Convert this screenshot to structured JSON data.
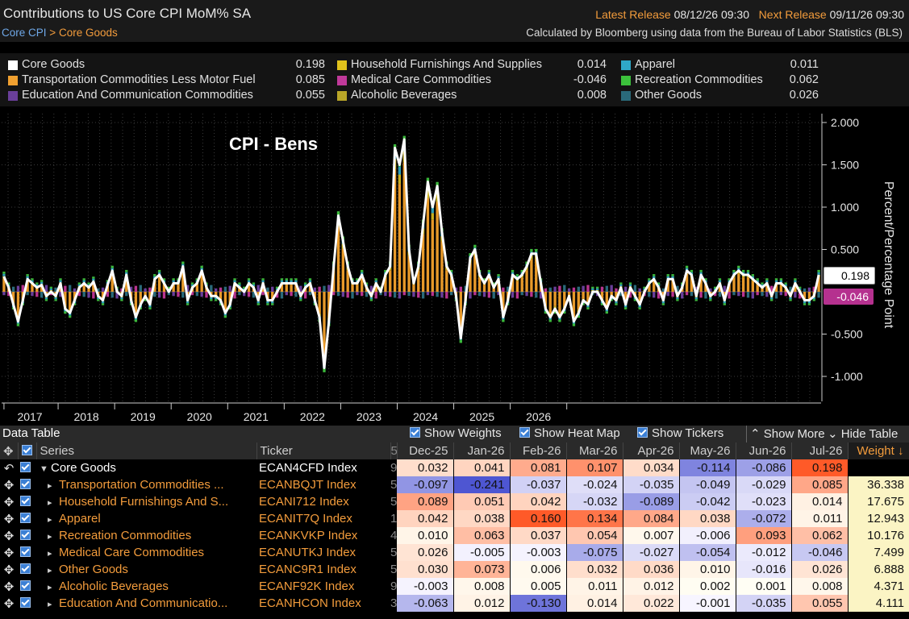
{
  "header": {
    "title": "Contributions to US Core CPI MoM% SA",
    "latest_label": "Latest Release",
    "latest_value": "08/12/26 09:30",
    "next_label": "Next Release",
    "next_value": "09/11/26 09:30",
    "breadcrumb_root": "Core CPI",
    "breadcrumb_sep": ">",
    "breadcrumb_leaf": "Core Goods",
    "source": "Calculated by Bloomberg using data from the Bureau of Labor Statistics (BLS)"
  },
  "legend": [
    {
      "name": "Core Goods",
      "value": "0.198",
      "color": "#ffffff"
    },
    {
      "name": "Transportation Commodities Less Motor Fuel",
      "value": "0.085",
      "color": "#f0a030"
    },
    {
      "name": "Education And Communication Commodities",
      "value": "0.055",
      "color": "#6a3f9a"
    },
    {
      "name": "Household Furnishings And Supplies",
      "value": "0.014",
      "color": "#e0c21c"
    },
    {
      "name": "Medical Care Commodities",
      "value": "-0.046",
      "color": "#c0399a"
    },
    {
      "name": "Alcoholic Beverages",
      "value": "0.008",
      "color": "#b9a628"
    },
    {
      "name": "Apparel",
      "value": "0.011",
      "color": "#2fa8c8"
    },
    {
      "name": "Recreation Commodities",
      "value": "0.062",
      "color": "#3cc13c"
    },
    {
      "name": "Other Goods",
      "value": "0.026",
      "color": "#2a6a7a"
    }
  ],
  "chart_data": {
    "type": "bar",
    "title": "CPI - Bens",
    "ylabel": "Percent/Percentage Point",
    "ylim": [
      -1.25,
      2.1
    ],
    "yticks": [
      "2.000",
      "1.500",
      "1.000",
      "0.500",
      "-0.500",
      "-1.000"
    ],
    "ytick_values": [
      2.0,
      1.5,
      1.0,
      0.5,
      -0.5,
      -1.0
    ],
    "xticks": [
      "2017",
      "2018",
      "2019",
      "2020",
      "2021",
      "2022",
      "2023",
      "2024",
      "2025",
      "2026"
    ],
    "start": "2016-01",
    "end": "2026-07",
    "line_series": "Core Goods",
    "bar_series": "Transportation Commodities Less Motor Fuel (stacked with other components)",
    "core_goods": [
      0.18,
      0.05,
      -0.15,
      -0.35,
      -0.1,
      0.15,
      0.1,
      0.05,
      0.08,
      -0.05,
      0.0,
      -0.05,
      0.1,
      -0.2,
      -0.25,
      -0.1,
      0.05,
      0.1,
      0.05,
      0.12,
      -0.05,
      -0.1,
      0.08,
      0.25,
      0.0,
      -0.05,
      0.2,
      -0.1,
      -0.3,
      -0.15,
      -0.05,
      -0.15,
      0.15,
      0.2,
      0.1,
      0.0,
      0.1,
      0.1,
      0.3,
      -0.1,
      0.05,
      0.1,
      0.25,
      0.05,
      -0.05,
      -0.05,
      -0.1,
      -0.25,
      -0.15,
      0.1,
      0.05,
      0.0,
      0.1,
      0.05,
      -0.1,
      0.1,
      -0.1,
      -0.1,
      0.0,
      0.1,
      0.1,
      0.1,
      0.1,
      -0.05,
      0.05,
      0.1,
      -0.1,
      -0.3,
      -0.9,
      -0.35,
      0.3,
      0.9,
      0.6,
      0.3,
      0.1,
      0.1,
      0.2,
      0.05,
      -0.05,
      0.1,
      0.0,
      0.2,
      0.3,
      1.7,
      1.5,
      1.8,
      0.5,
      0.1,
      0.3,
      0.8,
      1.3,
      1.0,
      1.25,
      0.7,
      0.3,
      0.2,
      -0.05,
      -0.55,
      -0.1,
      0.4,
      0.5,
      0.2,
      0.1,
      0.2,
      0.05,
      0.15,
      -0.3,
      -0.1,
      0.2,
      0.15,
      0.2,
      0.3,
      0.45,
      0.45,
      0.1,
      -0.2,
      -0.3,
      -0.2,
      -0.3,
      -0.2,
      -0.05,
      -0.35,
      -0.25,
      -0.1,
      -0.15,
      0.0,
      0.0,
      -0.1,
      -0.2,
      -0.05,
      -0.1,
      0.05,
      -0.15,
      0.05,
      -0.05,
      -0.15,
      0.0,
      0.1,
      0.15,
      0.05,
      -0.1,
      0.15,
      0.15,
      -0.05,
      0.05,
      0.25,
      0.2,
      -0.05,
      0.2,
      0.1,
      -0.05,
      0.0,
      0.1,
      -0.1,
      0.1,
      0.2,
      0.25,
      0.2,
      0.2,
      0.15,
      0.1,
      0.05,
      0.1,
      -0.05,
      0.1,
      0.1,
      0.05,
      -0.05,
      0.1,
      0.0,
      -0.1,
      -0.1,
      -0.05,
      0.2
    ]
  },
  "tags": {
    "core": "0.198",
    "medical": "-0.046"
  },
  "data_table": {
    "title": "Data Table",
    "show_weights": "Show Weights",
    "show_heat_map": "Show Heat Map",
    "show_tickers": "Show Tickers",
    "show_more": "Show More",
    "hide_table": "Hide Table",
    "col_series": "Series",
    "col_ticker": "Ticker",
    "months": [
      "Dec-25",
      "Jan-26",
      "Feb-26",
      "Mar-26",
      "Apr-26",
      "May-26",
      "Jun-26",
      "Jul-26"
    ],
    "col_weight": "Weight ↓",
    "rows": [
      {
        "name": "Core Goods",
        "ticker": "ECAN4CFD Index",
        "stub": "9",
        "values": [
          "0.032",
          "0.041",
          "0.081",
          "0.107",
          "0.034",
          "-0.114",
          "-0.086",
          "0.198"
        ],
        "weight": ""
      },
      {
        "name": "Transportation Commodities ...",
        "ticker": "ECANBQJT Index",
        "stub": "5",
        "values": [
          "-0.097",
          "-0.241",
          "-0.037",
          "-0.024",
          "-0.035",
          "-0.049",
          "-0.029",
          "0.085"
        ],
        "weight": "36.338"
      },
      {
        "name": "Household Furnishings And S...",
        "ticker": "ECANI712 Index",
        "stub": "5",
        "values": [
          "0.089",
          "0.051",
          "0.042",
          "-0.032",
          "-0.089",
          "-0.042",
          "-0.023",
          "0.014"
        ],
        "weight": "17.675"
      },
      {
        "name": "Apparel",
        "ticker": "ECANIT7Q Index",
        "stub": "1",
        "values": [
          "0.042",
          "0.038",
          "0.160",
          "0.134",
          "0.084",
          "0.038",
          "-0.072",
          "0.011"
        ],
        "weight": "12.943"
      },
      {
        "name": "Recreation Commodities",
        "ticker": "ECANKVKP Index",
        "stub": "4",
        "values": [
          "0.010",
          "0.063",
          "0.037",
          "0.054",
          "0.007",
          "-0.006",
          "0.093",
          "0.062"
        ],
        "weight": "10.176"
      },
      {
        "name": "Medical Care Commodities",
        "ticker": "ECANUTKJ Index",
        "stub": "5",
        "values": [
          "0.026",
          "-0.005",
          "-0.003",
          "-0.075",
          "-0.027",
          "-0.054",
          "-0.012",
          "-0.046"
        ],
        "weight": "7.499"
      },
      {
        "name": "Other Goods",
        "ticker": "ECANC9R1 Index",
        "stub": "5",
        "values": [
          "0.030",
          "0.073",
          "0.006",
          "0.032",
          "0.036",
          "0.010",
          "-0.016",
          "0.026"
        ],
        "weight": "6.888"
      },
      {
        "name": "Alcoholic Beverages",
        "ticker": "ECANF92K Index",
        "stub": "9",
        "values": [
          "-0.003",
          "0.008",
          "0.005",
          "0.011",
          "0.012",
          "0.002",
          "0.001",
          "0.008"
        ],
        "weight": "4.371"
      },
      {
        "name": "Education And Communicatio...",
        "ticker": "ECANHCON Index",
        "stub": "3",
        "values": [
          "-0.063",
          "0.012",
          "-0.130",
          "0.014",
          "0.022",
          "-0.001",
          "-0.035",
          "0.055"
        ],
        "weight": "4.111"
      }
    ]
  }
}
